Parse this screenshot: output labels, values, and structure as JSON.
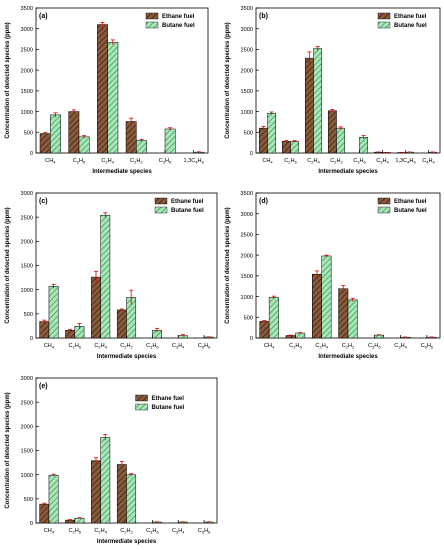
{
  "legend_labels": [
    "Ethane fuel",
    "Butane fuel"
  ],
  "colors": {
    "ethane": "#8a5a3a",
    "ethane_hatch": "#3b2416",
    "butane": "#a8e6b8",
    "butane_hatch": "#2f8a4c",
    "error_bar": "#e00000"
  },
  "chart_data": [
    {
      "type": "bar",
      "panel_label": "(a)",
      "xlabel": "Intermediate species",
      "ylabel": "Concentration of detected species (ppm)",
      "ylim": [
        0,
        3500
      ],
      "yticks": [
        0,
        500,
        1000,
        1500,
        2000,
        2500,
        3000,
        3500
      ],
      "categories": [
        {
          "base": "CH",
          "sub": "4"
        },
        {
          "base": "C",
          "sub": "2",
          "base2": "H",
          "sub2": "6"
        },
        {
          "base": "C",
          "sub": "2",
          "base2": "H",
          "sub2": "4"
        },
        {
          "base": "C",
          "sub": "2",
          "base2": "H",
          "sub2": "2"
        },
        {
          "base": "C",
          "sub": "3",
          "base2": "H",
          "sub2": "6"
        },
        {
          "base": "1,3C",
          "sub": "4",
          "base2": "H",
          "sub2": "6"
        }
      ],
      "legend_position": "top-right",
      "series": [
        {
          "name": "Ethane fuel",
          "values": [
            470,
            1000,
            3100,
            760,
            0,
            0
          ],
          "errors": [
            30,
            40,
            50,
            80,
            0,
            0
          ]
        },
        {
          "name": "Butane fuel",
          "values": [
            920,
            390,
            2670,
            300,
            580,
            20
          ],
          "errors": [
            50,
            30,
            60,
            30,
            30,
            10
          ]
        }
      ]
    },
    {
      "type": "bar",
      "panel_label": "(b)",
      "xlabel": "Intermediate species",
      "ylabel": "Concentration of detected species (ppm)",
      "ylim": [
        0,
        3500
      ],
      "yticks": [
        0,
        500,
        1000,
        1500,
        2000,
        2500,
        3000,
        3500
      ],
      "categories": [
        {
          "base": "CH",
          "sub": "4"
        },
        {
          "base": "C",
          "sub": "2",
          "base2": "H",
          "sub2": "6"
        },
        {
          "base": "C",
          "sub": "2",
          "base2": "H",
          "sub2": "4"
        },
        {
          "base": "C",
          "sub": "2",
          "base2": "H",
          "sub2": "2"
        },
        {
          "base": "C",
          "sub": "3",
          "base2": "H",
          "sub2": "6"
        },
        {
          "base": "C",
          "sub": "3",
          "base2": "H",
          "sub2": "4"
        },
        {
          "base": "1,3C",
          "sub": "4",
          "base2": "H",
          "sub2": "6"
        },
        {
          "base": "C",
          "sub": "4",
          "base2": "H",
          "sub2": "4"
        }
      ],
      "legend_position": "top-right",
      "series": [
        {
          "name": "Ethane fuel",
          "values": [
            600,
            280,
            2290,
            1020,
            0,
            20,
            10,
            0
          ],
          "errors": [
            40,
            20,
            150,
            30,
            0,
            5,
            5,
            0
          ]
        },
        {
          "name": "Butane fuel",
          "values": [
            960,
            280,
            2520,
            600,
            380,
            10,
            20,
            20
          ],
          "errors": [
            30,
            20,
            50,
            30,
            40,
            5,
            5,
            5
          ]
        }
      ]
    },
    {
      "type": "bar",
      "panel_label": "(c)",
      "xlabel": "Intermediate species",
      "ylabel": "Concentration of detected species (ppm)",
      "ylim": [
        0,
        3000
      ],
      "yticks": [
        0,
        500,
        1000,
        1500,
        2000,
        2500,
        3000
      ],
      "categories": [
        {
          "base": "CH",
          "sub": "4"
        },
        {
          "base": "C",
          "sub": "2",
          "base2": "H",
          "sub2": "6"
        },
        {
          "base": "C",
          "sub": "2",
          "base2": "H",
          "sub2": "4"
        },
        {
          "base": "C",
          "sub": "2",
          "base2": "H",
          "sub2": "2"
        },
        {
          "base": "C",
          "sub": "3",
          "base2": "H",
          "sub2": "6"
        },
        {
          "base": "C",
          "sub": "3",
          "base2": "H",
          "sub2": "4"
        },
        {
          "base": "C",
          "sub": "6",
          "base2": "H",
          "sub2": "6"
        }
      ],
      "legend_position": "top-right",
      "series": [
        {
          "name": "Ethane fuel",
          "values": [
            340,
            160,
            1260,
            580,
            0,
            0,
            0
          ],
          "errors": [
            30,
            20,
            120,
            20,
            0,
            0,
            0
          ]
        },
        {
          "name": "Butane fuel",
          "values": [
            1070,
            240,
            2540,
            840,
            160,
            50,
            20
          ],
          "errors": [
            40,
            60,
            50,
            150,
            40,
            20,
            5
          ]
        }
      ]
    },
    {
      "type": "bar",
      "panel_label": "(d)",
      "xlabel": "Intermediate species",
      "ylabel": "Concentration of detected species (ppm)",
      "ylim": [
        0,
        3500
      ],
      "yticks": [
        0,
        500,
        1000,
        1500,
        2000,
        2500,
        3000,
        3500
      ],
      "categories": [
        {
          "base": "CH",
          "sub": "4"
        },
        {
          "base": "C",
          "sub": "2",
          "base2": "H",
          "sub2": "6"
        },
        {
          "base": "C",
          "sub": "2",
          "base2": "H",
          "sub2": "4"
        },
        {
          "base": "C",
          "sub": "2",
          "base2": "H",
          "sub2": "2"
        },
        {
          "base": "C",
          "sub": "3",
          "base2": "H",
          "sub2": "6"
        },
        {
          "base": "C",
          "sub": "3",
          "base2": "H",
          "sub2": "4"
        },
        {
          "base": "C",
          "sub": "6",
          "base2": "H",
          "sub2": "6"
        }
      ],
      "legend_position": "top-right",
      "series": [
        {
          "name": "Ethane fuel",
          "values": [
            400,
            60,
            1540,
            1190,
            0,
            0,
            0
          ],
          "errors": [
            20,
            10,
            80,
            80,
            0,
            0,
            0
          ]
        },
        {
          "name": "Butane fuel",
          "values": [
            980,
            120,
            1980,
            920,
            70,
            20,
            20
          ],
          "errors": [
            30,
            10,
            20,
            40,
            10,
            5,
            5
          ]
        }
      ]
    },
    {
      "type": "bar",
      "panel_label": "(e)",
      "xlabel": "Intermediate species",
      "ylabel": "Concentration of detected species (ppm)",
      "ylim": [
        0,
        3000
      ],
      "yticks": [
        0,
        500,
        1000,
        1500,
        2000,
        2500,
        3000
      ],
      "categories": [
        {
          "base": "CH",
          "sub": "4"
        },
        {
          "base": "C",
          "sub": "2",
          "base2": "H",
          "sub2": "6"
        },
        {
          "base": "C",
          "sub": "2",
          "base2": "H",
          "sub2": "4"
        },
        {
          "base": "C",
          "sub": "2",
          "base2": "H",
          "sub2": "2"
        },
        {
          "base": "C",
          "sub": "3",
          "base2": "H",
          "sub2": "6"
        },
        {
          "base": "C",
          "sub": "3",
          "base2": "H",
          "sub2": "4"
        },
        {
          "base": "C",
          "sub": "6",
          "base2": "H",
          "sub2": "6"
        }
      ],
      "legend_position": "top-center",
      "series": [
        {
          "name": "Ethane fuel",
          "values": [
            390,
            60,
            1290,
            1210,
            0,
            0,
            0
          ],
          "errors": [
            20,
            10,
            60,
            60,
            0,
            0,
            0
          ]
        },
        {
          "name": "Butane fuel",
          "values": [
            990,
            100,
            1770,
            1000,
            20,
            20,
            20
          ],
          "errors": [
            20,
            10,
            60,
            20,
            5,
            5,
            5
          ]
        }
      ]
    }
  ]
}
